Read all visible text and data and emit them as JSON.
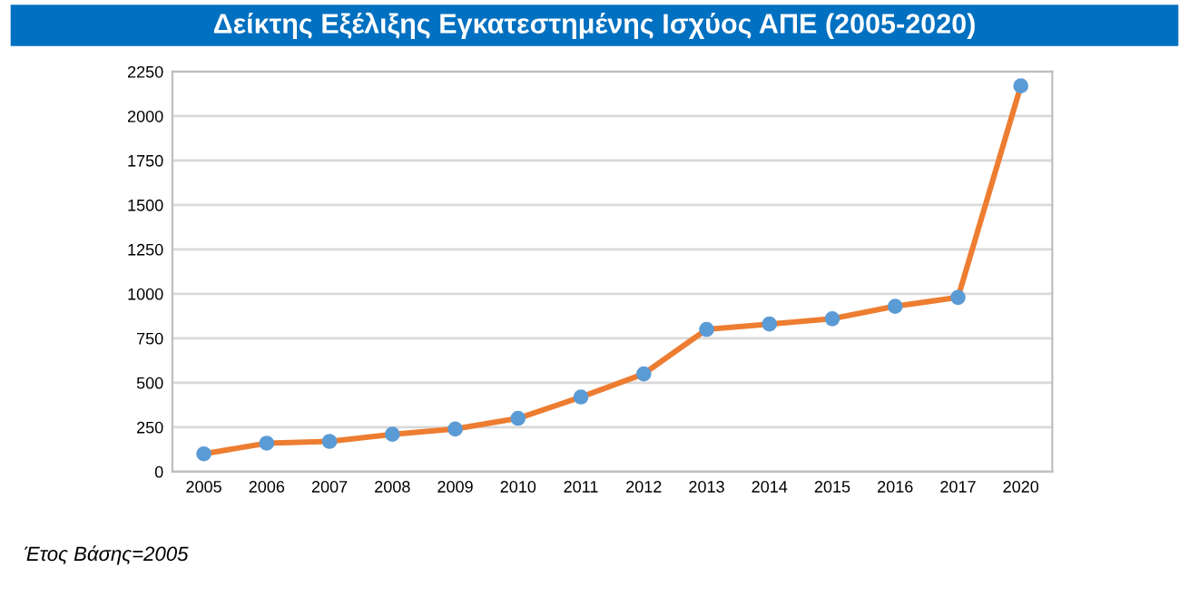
{
  "chart_data": {
    "type": "line",
    "title": "Δείκτης Εξέλιξης Εγκατεστημένης Ισχύος ΑΠΕ (2005-2020)",
    "categories": [
      "2005",
      "2006",
      "2007",
      "2008",
      "2009",
      "2010",
      "2011",
      "2012",
      "2013",
      "2014",
      "2015",
      "2016",
      "2017",
      "2020"
    ],
    "series": [
      {
        "color": "#ed7d31",
        "values": [
          100,
          160,
          170,
          210,
          240,
          300,
          420,
          550,
          800,
          830,
          860,
          930,
          980,
          2170
        ]
      }
    ],
    "ylim": [
      0,
      2250
    ],
    "yticks": [
      0,
      250,
      500,
      750,
      1000,
      1250,
      1500,
      1750,
      2000,
      2250
    ],
    "grid": "y",
    "marker": "circle",
    "line_style": "solid",
    "annotations": [
      "Έτος Βάσης=2005"
    ]
  }
}
